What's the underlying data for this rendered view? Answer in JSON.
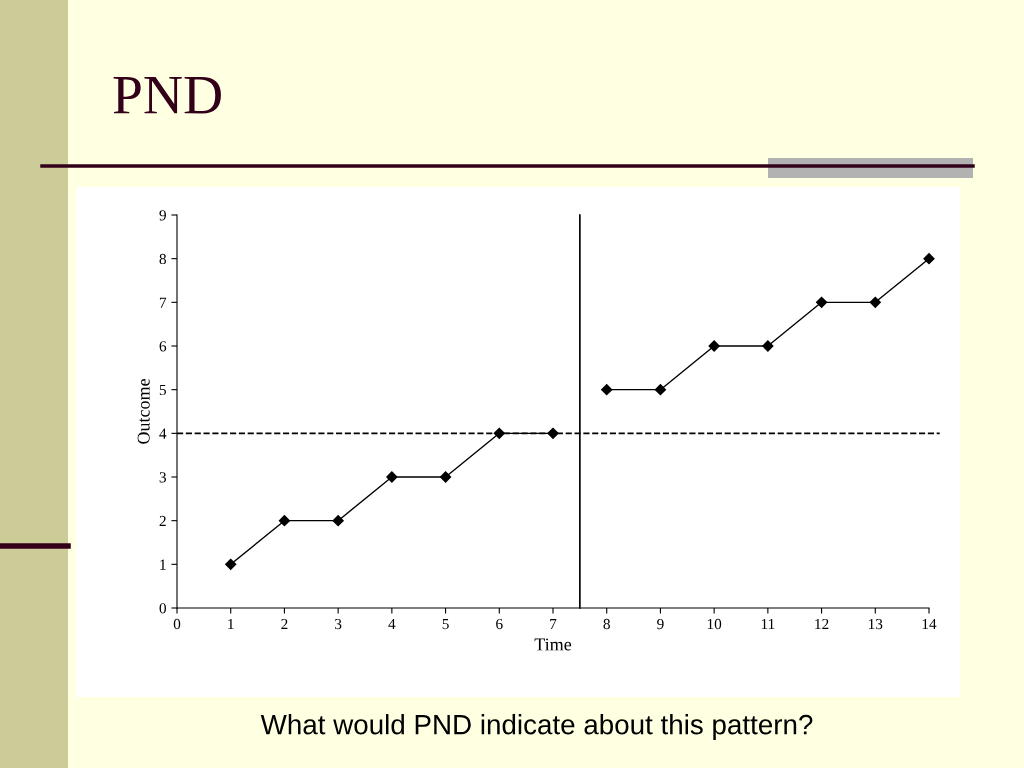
{
  "chart_data": {
    "type": "line",
    "title": "PND",
    "xlabel": "Time",
    "ylabel": "Outcome",
    "annotations": [
      "What would PND indicate about this pattern?"
    ],
    "series": [
      {
        "color": "#000000",
        "x": [
          1,
          2,
          3,
          4,
          5,
          6,
          7
        ],
        "values": [
          1,
          2,
          2,
          3,
          3,
          4,
          4
        ]
      },
      {
        "color": "#000000",
        "x": [
          8,
          9,
          10,
          11,
          12,
          13,
          14
        ],
        "values": [
          5,
          5,
          6,
          6,
          7,
          7,
          8
        ]
      }
    ],
    "xlim": [
      0,
      14
    ],
    "xticks": [
      0,
      1,
      2,
      3,
      4,
      5,
      6,
      7,
      8,
      9,
      10,
      11,
      12,
      13,
      14
    ],
    "ylim": [
      0,
      9
    ],
    "yticks": [
      0,
      1,
      2,
      3,
      4,
      5,
      6,
      7,
      8,
      9
    ],
    "ref_lines": [
      {
        "axis": "y",
        "value": 4,
        "color": "#000000",
        "line_style": "dashed"
      },
      {
        "axis": "x",
        "value": 7.5,
        "color": "#000000",
        "line_style": "solid"
      }
    ],
    "grid": false,
    "legend": false,
    "marker": "diamond",
    "line_style": "solid"
  }
}
